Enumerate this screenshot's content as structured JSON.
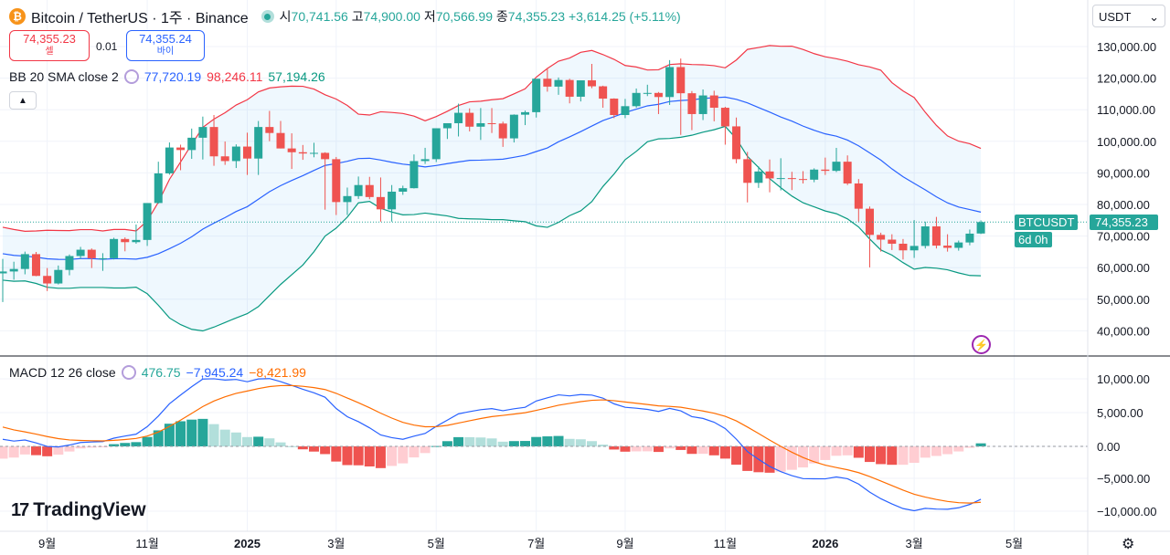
{
  "header": {
    "coin_icon": "bitcoin-icon",
    "coin_glyph": "₿",
    "title": "Bitcoin / TetherUS · 1주 · Binance",
    "o_label": "시",
    "o": "70,741.56",
    "h_label": "고",
    "h": "74,900.00",
    "l_label": "저",
    "l": "70,566.99",
    "c_label": "종",
    "c": "74,355.23",
    "change": "+3,614.25 (+5.11%)"
  },
  "trade": {
    "sell_price": "74,355.23",
    "sell_label": "셀",
    "spread": "0.01",
    "buy_price": "74,355.24",
    "buy_label": "바이"
  },
  "bb": {
    "label": "BB 20 SMA close 2",
    "basis": "77,720.19",
    "upper": "98,246.11",
    "lower": "57,194.26"
  },
  "macd": {
    "label": "MACD 12 26 close",
    "hist": "476.75",
    "macd": "−7,945.24",
    "signal": "−8,421.99"
  },
  "currency": "USDT",
  "price_tag": {
    "symbol": "BTCUSDT",
    "price": "74,355.23",
    "countdown": "6d 0h"
  },
  "logo": "TradingView",
  "colors": {
    "up": "#26a69a",
    "down": "#ef5350",
    "bb_upper": "#f23645",
    "bb_basis": "#2962ff",
    "bb_lower": "#089981",
    "macd": "#2962ff",
    "signal": "#ff6d00"
  },
  "chart_data": {
    "type": "candlestick",
    "price_axis": [
      "130,000.00",
      "120,000.00",
      "110,000.00",
      "100,000.00",
      "90,000.00",
      "80,000.00",
      "70,000.00",
      "60,000.00",
      "50,000.00",
      "40,000.00"
    ],
    "price_range": [
      40000,
      130000
    ],
    "macd_axis": [
      "10,000.00",
      "5,000.00",
      "0.00",
      "−5,000.00",
      "−10,000.00"
    ],
    "macd_range": [
      -10000,
      10000
    ],
    "time_axis": [
      {
        "t": "9월",
        "i": 4
      },
      {
        "t": "11월",
        "i": 13
      },
      {
        "t": "2025",
        "i": 22,
        "bold": true
      },
      {
        "t": "3월",
        "i": 30
      },
      {
        "t": "5월",
        "i": 39
      },
      {
        "t": "7월",
        "i": 48
      },
      {
        "t": "9월",
        "i": 56
      },
      {
        "t": "11월",
        "i": 65
      },
      {
        "t": "2026",
        "i": 74,
        "bold": true
      },
      {
        "t": "3월",
        "i": 82
      },
      {
        "t": "5월",
        "i": 91
      }
    ],
    "ohlc": [
      [
        58.1,
        62.7,
        49,
        58.7
      ],
      [
        58.7,
        61.8,
        56.1,
        59.5
      ],
      [
        59.5,
        65,
        57.8,
        64.2
      ],
      [
        64.2,
        64.9,
        57.2,
        57.3
      ],
      [
        57.3,
        59.8,
        52.5,
        54.9
      ],
      [
        54.9,
        60.6,
        54.6,
        59.2
      ],
      [
        59.2,
        64.1,
        57.5,
        63.6
      ],
      [
        63.6,
        66.5,
        62.7,
        65.6
      ],
      [
        65.6,
        66,
        59.8,
        62.9
      ],
      [
        62.9,
        64.5,
        58.9,
        62.9
      ],
      [
        62.9,
        69.4,
        62.5,
        69
      ],
      [
        69,
        69.5,
        65.1,
        68
      ],
      [
        68,
        73.6,
        67.5,
        68.7
      ],
      [
        68.7,
        80.3,
        66.8,
        80.4
      ],
      [
        80.4,
        93.5,
        80.2,
        89.8
      ],
      [
        89.8,
        99.6,
        89.4,
        98
      ],
      [
        98,
        98.9,
        90.8,
        97.2
      ],
      [
        97.2,
        104,
        94.4,
        101.1
      ],
      [
        101.1,
        107.8,
        94.2,
        104.5
      ],
      [
        104.5,
        108.3,
        92.2,
        95.2
      ],
      [
        95.2,
        99.9,
        92.5,
        93.7
      ],
      [
        93.7,
        99,
        91.5,
        98.3
      ],
      [
        98.3,
        102.7,
        89.3,
        94.5
      ],
      [
        94.5,
        106.4,
        89.3,
        104.5
      ],
      [
        104.5,
        109.6,
        100,
        102.6
      ],
      [
        102.6,
        106.4,
        97.7,
        97.7
      ],
      [
        97.7,
        102.5,
        91.2,
        96.5
      ],
      [
        96.5,
        98.8,
        94.1,
        96.1
      ],
      [
        96.1,
        99.5,
        94.9,
        96.3
      ],
      [
        96.3,
        96.5,
        78.3,
        94.3
      ],
      [
        94.3,
        95,
        76.6,
        80.7
      ],
      [
        80.7,
        85.3,
        76.6,
        82.6
      ],
      [
        82.6,
        88.8,
        81.7,
        86.1
      ],
      [
        86.1,
        88.7,
        81.6,
        82.3
      ],
      [
        82.3,
        88.5,
        74.5,
        78.4
      ],
      [
        78.4,
        86.1,
        74.5,
        84
      ],
      [
        84,
        85.9,
        83,
        85.1
      ],
      [
        85.1,
        95.8,
        85,
        93.7
      ],
      [
        93.7,
        97.9,
        92.8,
        94.3
      ],
      [
        94.3,
        104.1,
        93.4,
        104.1
      ],
      [
        104.1,
        105.7,
        100.7,
        105.7
      ],
      [
        105.7,
        111.9,
        101.5,
        109
      ],
      [
        109,
        110.4,
        103.1,
        104.6
      ],
      [
        104.6,
        110.5,
        100.4,
        105.7
      ],
      [
        105.7,
        110.5,
        102.6,
        105.6
      ],
      [
        105.6,
        106.2,
        98.2,
        100.9
      ],
      [
        100.9,
        108.5,
        99.6,
        108.4
      ],
      [
        108.4,
        109.7,
        105.1,
        109.2
      ],
      [
        109.2,
        119.5,
        107.5,
        119.8
      ],
      [
        119.8,
        123.2,
        115.7,
        117.3
      ],
      [
        117.3,
        120.2,
        114.7,
        119.4
      ],
      [
        119.4,
        119.8,
        112,
        114.1
      ],
      [
        114.1,
        119.3,
        112.6,
        119.3
      ],
      [
        119.3,
        124.5,
        116.8,
        117.4
      ],
      [
        117.4,
        117.6,
        110.6,
        113.5
      ],
      [
        113.5,
        113.6,
        107.3,
        108.3
      ],
      [
        108.3,
        113.4,
        107.3,
        111.1
      ],
      [
        111.1,
        116.7,
        110.6,
        115.3
      ],
      [
        115.3,
        117.9,
        114.3,
        115.3
      ],
      [
        115.3,
        115.6,
        108.6,
        114
      ],
      [
        114,
        125.7,
        111.5,
        123.5
      ],
      [
        123.5,
        126.2,
        102,
        115.2
      ],
      [
        115.2,
        115.9,
        103.5,
        108.6
      ],
      [
        108.6,
        116.4,
        106.7,
        114.5
      ],
      [
        114.5,
        116,
        106.3,
        110.6
      ],
      [
        110.6,
        110.9,
        98.9,
        104.7
      ],
      [
        104.7,
        107.5,
        93,
        94.3
      ],
      [
        94.3,
        96.6,
        80.6,
        86.8
      ],
      [
        86.8,
        92,
        85.2,
        90.4
      ],
      [
        90.4,
        94.2,
        83.8,
        88.2
      ],
      [
        88.2,
        94.6,
        84.4,
        88.3
      ],
      [
        88.3,
        90.3,
        84.5,
        88
      ],
      [
        88,
        90.5,
        86.6,
        87.8
      ],
      [
        87.8,
        91.4,
        87,
        91
      ],
      [
        91,
        94.8,
        89.3,
        90.6
      ],
      [
        90.6,
        97.9,
        90.2,
        93.5
      ],
      [
        93.5,
        95.5,
        86.1,
        86.6
      ],
      [
        86.6,
        88,
        74.5,
        78.6
      ],
      [
        78.6,
        79.3,
        60,
        70.3
      ],
      [
        70.3,
        71,
        65,
        68.8
      ],
      [
        68.8,
        70.5,
        65.5,
        67.5
      ],
      [
        67.5,
        69,
        62.5,
        65.4
      ],
      [
        65.4,
        75,
        63,
        66.8
      ],
      [
        66.8,
        74.5,
        66,
        73
      ],
      [
        73,
        76,
        66,
        66.9
      ],
      [
        66.9,
        70.5,
        65,
        66.2
      ],
      [
        66.2,
        68.5,
        65.3,
        67.9
      ],
      [
        67.9,
        72,
        67,
        70.7
      ],
      [
        70.741,
        74.9,
        70.567,
        74.355
      ]
    ],
    "ohlc_unit": "thousand USDT"
  }
}
